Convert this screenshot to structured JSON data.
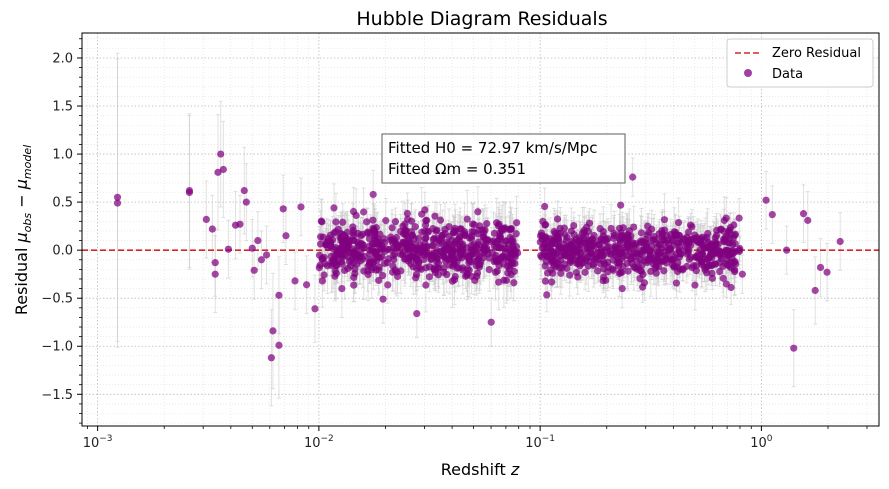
{
  "chart_data": {
    "type": "scatter",
    "title": "Hubble Diagram Residuals",
    "xlabel": "Redshift z",
    "ylabel": "Residual μobs − μmodel",
    "xscale": "log",
    "xlim": [
      0.00085,
      3.4
    ],
    "ylim": [
      -1.83,
      2.26
    ],
    "x_ticks": [
      {
        "base": "10",
        "exp": "−3",
        "value": 0.001
      },
      {
        "base": "10",
        "exp": "−2",
        "value": 0.01
      },
      {
        "base": "10",
        "exp": "−1",
        "value": 0.1
      },
      {
        "base": "10",
        "exp": "0",
        "value": 1
      }
    ],
    "y_ticks": [
      "−1.5",
      "−1.0",
      "−0.5",
      "0.0",
      "0.5",
      "1.0",
      "1.5",
      "2.0"
    ],
    "grid": "major and minor, dotted",
    "legend": {
      "placement": "top-right",
      "entries": [
        {
          "label": "Zero Residual",
          "style": "dashed-line",
          "color": "#d62728"
        },
        {
          "label": "Data",
          "style": "marker",
          "color": "#800080"
        }
      ]
    },
    "annotation": {
      "lines": [
        "Fitted H0 = 72.97 km/s/Mpc",
        "Fitted Ωm = 0.351"
      ],
      "anchor": {
        "z": 0.02,
        "residual": 0.75
      }
    },
    "reference_line": {
      "y": 0,
      "label": "Zero Residual",
      "color": "#d62728"
    },
    "colors": {
      "points": "#800080",
      "errorbars": "#c8c8c8",
      "zero_line": "#d62728"
    },
    "series": [
      {
        "name": "Data",
        "points": [
          {
            "z": 0.00123,
            "y": 0.55,
            "err": 1.5
          },
          {
            "z": 0.00123,
            "y": 0.49,
            "err": 1.5
          },
          {
            "z": 0.0026,
            "y": 0.62,
            "err": 0.8
          },
          {
            "z": 0.0026,
            "y": 0.6,
            "err": 0.8
          },
          {
            "z": 0.0031,
            "y": 0.32,
            "err": 0.4
          },
          {
            "z": 0.0033,
            "y": 0.22,
            "err": 0.35
          },
          {
            "z": 0.0034,
            "y": -0.25,
            "err": 0.4
          },
          {
            "z": 0.0034,
            "y": -0.13,
            "err": 0.35
          },
          {
            "z": 0.0035,
            "y": 0.81,
            "err": 0.6
          },
          {
            "z": 0.0036,
            "y": 1.0,
            "err": 0.55
          },
          {
            "z": 0.0037,
            "y": 0.84,
            "err": 0.5
          },
          {
            "z": 0.0039,
            "y": 0.01,
            "err": 0.3
          },
          {
            "z": 0.0042,
            "y": 0.26,
            "err": 0.35
          },
          {
            "z": 0.0044,
            "y": 0.27,
            "err": 0.3
          },
          {
            "z": 0.0046,
            "y": 0.62,
            "err": 0.45
          },
          {
            "z": 0.0047,
            "y": 0.5,
            "err": 0.4
          },
          {
            "z": 0.005,
            "y": 0.02,
            "err": 0.3
          },
          {
            "z": 0.0051,
            "y": -0.21,
            "err": 0.3
          },
          {
            "z": 0.0053,
            "y": 0.1,
            "err": 0.3
          },
          {
            "z": 0.0055,
            "y": -0.1,
            "err": 0.3
          },
          {
            "z": 0.0058,
            "y": -0.05,
            "err": 0.3
          },
          {
            "z": 0.0061,
            "y": -1.12,
            "err": 0.5
          },
          {
            "z": 0.0062,
            "y": -0.84,
            "err": 0.6
          },
          {
            "z": 0.0066,
            "y": -0.99,
            "err": 0.55
          },
          {
            "z": 0.0066,
            "y": -0.47,
            "err": 0.4
          },
          {
            "z": 0.0069,
            "y": 0.43,
            "err": 0.35
          },
          {
            "z": 0.0071,
            "y": 0.15,
            "err": 0.3
          },
          {
            "z": 0.0078,
            "y": -0.32,
            "err": 0.3
          },
          {
            "z": 0.0083,
            "y": 0.45,
            "err": 0.3
          },
          {
            "z": 0.0088,
            "y": -0.36,
            "err": 0.3
          },
          {
            "z": 0.0096,
            "y": -0.61,
            "err": 0.35
          },
          {
            "z": 0.0117,
            "y": 0.44,
            "err": 0.25
          },
          {
            "z": 0.0127,
            "y": -0.4,
            "err": 0.3
          },
          {
            "z": 0.0176,
            "y": 0.58,
            "err": 0.25
          },
          {
            "z": 0.0195,
            "y": -0.51,
            "err": 0.25
          },
          {
            "z": 0.0277,
            "y": -0.66,
            "err": 0.25
          },
          {
            "z": 0.0601,
            "y": -0.75,
            "err": 0.25
          },
          {
            "z": 0.235,
            "y": -0.4,
            "err": 0.2
          },
          {
            "z": 0.262,
            "y": 0.76,
            "err": 0.2
          },
          {
            "z": 0.82,
            "y": -0.25,
            "err": 0.2
          },
          {
            "z": 1.05,
            "y": 0.52,
            "err": 0.3
          },
          {
            "z": 1.12,
            "y": 0.37,
            "err": 0.3
          },
          {
            "z": 1.3,
            "y": 0.0,
            "err": 0.25
          },
          {
            "z": 1.4,
            "y": -1.02,
            "err": 0.4
          },
          {
            "z": 1.55,
            "y": 0.38,
            "err": 0.3
          },
          {
            "z": 1.62,
            "y": 0.31,
            "err": 0.3
          },
          {
            "z": 1.75,
            "y": -0.42,
            "err": 0.35
          },
          {
            "z": 1.85,
            "y": -0.18,
            "err": 0.3
          },
          {
            "z": 1.98,
            "y": -0.23,
            "err": 0.3
          },
          {
            "z": 2.27,
            "y": 0.09,
            "err": 0.3
          }
        ],
        "dense_bands": [
          {
            "zmin": 0.01,
            "zmax": 0.08,
            "count": 600,
            "sigma": 0.15,
            "err": 0.2
          },
          {
            "zmin": 0.1,
            "zmax": 0.8,
            "count": 600,
            "sigma": 0.14,
            "err": 0.18
          }
        ]
      }
    ]
  }
}
